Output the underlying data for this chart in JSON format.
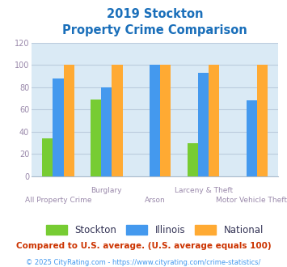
{
  "title_line1": "2019 Stockton",
  "title_line2": "Property Crime Comparison",
  "title_color": "#1a6fba",
  "categories": [
    "All Property Crime",
    "Burglary",
    "Arson",
    "Larceny & Theft",
    "Motor Vehicle Theft"
  ],
  "cat_labels_row1": [
    "",
    "Burglary",
    "",
    "Larceny & Theft",
    ""
  ],
  "cat_labels_row2": [
    "All Property Crime",
    "",
    "Arson",
    "",
    "Motor Vehicle Theft"
  ],
  "series": {
    "Stockton": {
      "values": [
        34,
        69,
        0,
        30,
        0
      ],
      "color": "#77cc33"
    },
    "Illinois": {
      "values": [
        88,
        80,
        100,
        93,
        68
      ],
      "color": "#4499ee"
    },
    "National": {
      "values": [
        100,
        100,
        100,
        100,
        100
      ],
      "color": "#ffaa33"
    }
  },
  "ylim": [
    0,
    120
  ],
  "yticks": [
    0,
    20,
    40,
    60,
    80,
    100,
    120
  ],
  "plot_bg_color": "#daeaf5",
  "fig_bg_color": "#ffffff",
  "grid_color": "#bbccdd",
  "footnote1": "Compared to U.S. average. (U.S. average equals 100)",
  "footnote2": "© 2025 CityRating.com - https://www.cityrating.com/crime-statistics/",
  "footnote1_color": "#cc3300",
  "footnote2_color": "#4499ee",
  "legend_label_color": "#333355",
  "tick_label_color": "#9988aa",
  "bar_width": 0.22
}
